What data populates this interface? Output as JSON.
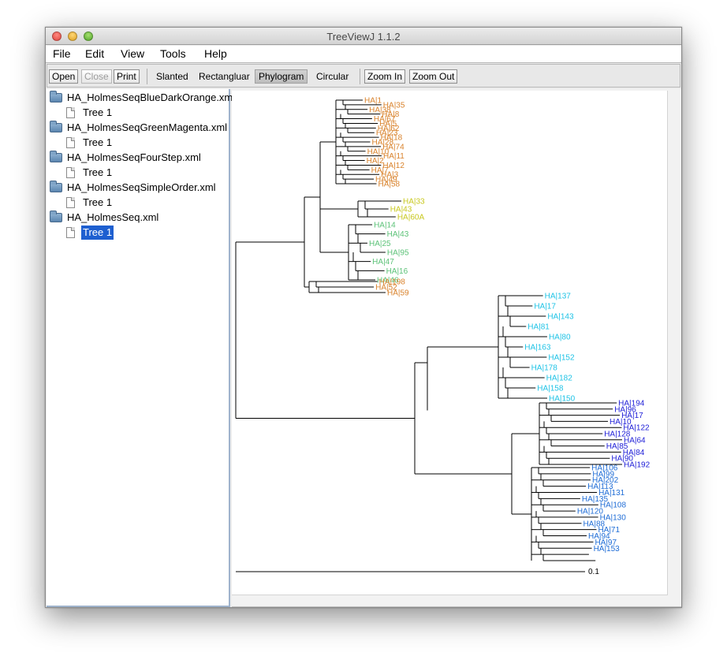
{
  "window": {
    "title": "TreeViewJ 1.1.2"
  },
  "menu": [
    "File",
    "Edit",
    "View",
    "Tools",
    "Help"
  ],
  "toolbar": {
    "open": "Open",
    "close": "Close",
    "print": "Print",
    "slanted": "Slanted",
    "rectangular": "Rectangluar",
    "phylogram": "Phylogram",
    "circular": "Circular",
    "zoom_in": "Zoom In",
    "zoom_out": "Zoom Out"
  },
  "files": [
    {
      "name": "HA_HolmesSeqBlueDarkOrange.xml",
      "tree": "Tree 1"
    },
    {
      "name": "HA_HolmesSeqGreenMagenta.xml",
      "tree": "Tree 1"
    },
    {
      "name": "HA_HolmesSeqFourStep.xml",
      "tree": "Tree 1"
    },
    {
      "name": "HA_HolmesSeqSimpleOrder.xml",
      "tree": "Tree 1"
    },
    {
      "name": "HA_HolmesSeq.xml",
      "tree": "Tree 1"
    }
  ],
  "selected_tree": "HA_HolmesSeq.xml / Tree 1",
  "colors": {
    "orange": "#d9822b",
    "yellow": "#c8c81e",
    "green": "#5cc278",
    "cyan": "#1ec3e6",
    "darkblue": "#2020d8",
    "blue": "#1e6cd6",
    "selection": "#1e5fd0"
  },
  "phylogram": {
    "scale_label": "0.1",
    "leaves": [
      {
        "label": "HA|1",
        "color": "orange"
      },
      {
        "label": "HA|35",
        "color": "orange"
      },
      {
        "label": "HA|38",
        "color": "orange"
      },
      {
        "label": "HA|8",
        "color": "orange"
      },
      {
        "label": "HA|67",
        "color": "orange"
      },
      {
        "label": "HA|5",
        "color": "orange"
      },
      {
        "label": "HA|62",
        "color": "orange"
      },
      {
        "label": "HA|23",
        "color": "orange"
      },
      {
        "label": "HA|18",
        "color": "orange"
      },
      {
        "label": "HA|28",
        "color": "orange"
      },
      {
        "label": "HA|74",
        "color": "orange"
      },
      {
        "label": "HA|10",
        "color": "orange"
      },
      {
        "label": "HA|11",
        "color": "orange"
      },
      {
        "label": "HA|2",
        "color": "orange"
      },
      {
        "label": "HA|12",
        "color": "orange"
      },
      {
        "label": "HA|7",
        "color": "orange"
      },
      {
        "label": "HA|3",
        "color": "orange"
      },
      {
        "label": "HA|49",
        "color": "orange"
      },
      {
        "label": "HA|58",
        "color": "orange"
      },
      {
        "label": "HA|33",
        "color": "yellow"
      },
      {
        "label": "HA|43",
        "color": "yellow"
      },
      {
        "label": "HA|60A",
        "color": "yellow"
      },
      {
        "label": "HA|14",
        "color": "green"
      },
      {
        "label": "HA|43",
        "color": "green"
      },
      {
        "label": "HA|25",
        "color": "green"
      },
      {
        "label": "HA|95",
        "color": "green"
      },
      {
        "label": "HA|47",
        "color": "green"
      },
      {
        "label": "HA|16",
        "color": "green"
      },
      {
        "label": "HA|46",
        "color": "green"
      },
      {
        "label": "HA|198",
        "color": "orange"
      },
      {
        "label": "HA|52",
        "color": "orange"
      },
      {
        "label": "HA|59",
        "color": "orange"
      },
      {
        "label": "HA|137",
        "color": "cyan"
      },
      {
        "label": "HA|17",
        "color": "cyan"
      },
      {
        "label": "HA|143",
        "color": "cyan"
      },
      {
        "label": "HA|81",
        "color": "cyan"
      },
      {
        "label": "HA|80",
        "color": "cyan"
      },
      {
        "label": "HA|163",
        "color": "cyan"
      },
      {
        "label": "HA|152",
        "color": "cyan"
      },
      {
        "label": "HA|178",
        "color": "cyan"
      },
      {
        "label": "HA|182",
        "color": "cyan"
      },
      {
        "label": "HA|158",
        "color": "cyan"
      },
      {
        "label": "HA|150",
        "color": "cyan"
      },
      {
        "label": "HA|194",
        "color": "darkblue"
      },
      {
        "label": "HA|96",
        "color": "darkblue"
      },
      {
        "label": "HA|17",
        "color": "darkblue"
      },
      {
        "label": "HA|10",
        "color": "darkblue"
      },
      {
        "label": "HA|122",
        "color": "darkblue"
      },
      {
        "label": "HA|128",
        "color": "darkblue"
      },
      {
        "label": "HA|64",
        "color": "darkblue"
      },
      {
        "label": "HA|85",
        "color": "darkblue"
      },
      {
        "label": "HA|84",
        "color": "darkblue"
      },
      {
        "label": "HA|90",
        "color": "darkblue"
      },
      {
        "label": "HA|192",
        "color": "darkblue"
      },
      {
        "label": "HA|106",
        "color": "blue"
      },
      {
        "label": "HA|99",
        "color": "blue"
      },
      {
        "label": "HA|202",
        "color": "blue"
      },
      {
        "label": "HA|113",
        "color": "blue"
      },
      {
        "label": "HA|131",
        "color": "blue"
      },
      {
        "label": "HA|135",
        "color": "blue"
      },
      {
        "label": "HA|108",
        "color": "blue"
      },
      {
        "label": "HA|120",
        "color": "blue"
      },
      {
        "label": "HA|130",
        "color": "blue"
      },
      {
        "label": "HA|88",
        "color": "blue"
      },
      {
        "label": "HA|71",
        "color": "blue"
      },
      {
        "label": "HA|94",
        "color": "blue"
      },
      {
        "label": "HA|97",
        "color": "blue"
      },
      {
        "label": "HA|153",
        "color": "blue"
      }
    ]
  }
}
